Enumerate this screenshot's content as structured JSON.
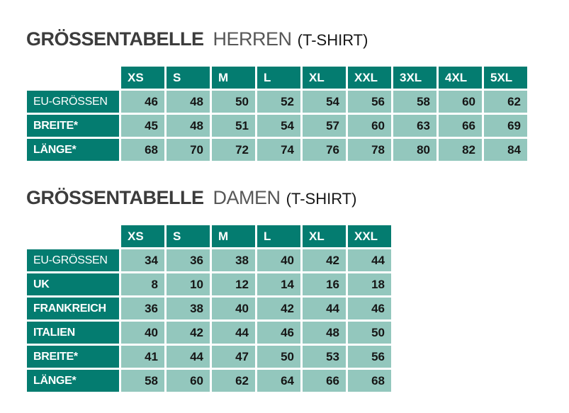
{
  "colors": {
    "header_bg": "#047C70",
    "cell_bg": "#93C7BD",
    "title_main": "#3C3C3C",
    "title_sub": "#575757",
    "title_suffix": "#161616",
    "cell_text": "#161616"
  },
  "tables": [
    {
      "id": "herren",
      "title": {
        "main": "GRÖSSENTABELLE",
        "sub": "HERREN",
        "suffix": "(T-SHIRT)"
      },
      "columns": [
        "XS",
        "S",
        "M",
        "L",
        "XL",
        "XXL",
        "3XL",
        "4XL",
        "5XL"
      ],
      "rows": [
        {
          "label": "EU-GRÖSSEN",
          "bold": false,
          "values": [
            46,
            48,
            50,
            52,
            54,
            56,
            58,
            60,
            62
          ]
        },
        {
          "label": "BREITE*",
          "bold": true,
          "values": [
            45,
            48,
            51,
            54,
            57,
            60,
            63,
            66,
            69
          ]
        },
        {
          "label": "LÄNGE*",
          "bold": true,
          "values": [
            68,
            70,
            72,
            74,
            76,
            78,
            80,
            82,
            84
          ]
        }
      ]
    },
    {
      "id": "damen",
      "title": {
        "main": "GRÖSSENTABELLE",
        "sub": "DAMEN",
        "suffix": "(T-SHIRT)"
      },
      "columns": [
        "XS",
        "S",
        "M",
        "L",
        "XL",
        "XXL"
      ],
      "rows": [
        {
          "label": "EU-GRÖSSEN",
          "bold": false,
          "values": [
            34,
            36,
            38,
            40,
            42,
            44
          ]
        },
        {
          "label": "UK",
          "bold": true,
          "values": [
            8,
            10,
            12,
            14,
            16,
            18
          ]
        },
        {
          "label": "FRANKREICH",
          "bold": true,
          "values": [
            36,
            38,
            40,
            42,
            44,
            46
          ]
        },
        {
          "label": "ITALIEN",
          "bold": true,
          "values": [
            40,
            42,
            44,
            46,
            48,
            50
          ]
        },
        {
          "label": "BREITE*",
          "bold": true,
          "values": [
            41,
            44,
            47,
            50,
            53,
            56
          ]
        },
        {
          "label": "LÄNGE*",
          "bold": true,
          "values": [
            58,
            60,
            62,
            64,
            66,
            68
          ]
        }
      ]
    }
  ]
}
